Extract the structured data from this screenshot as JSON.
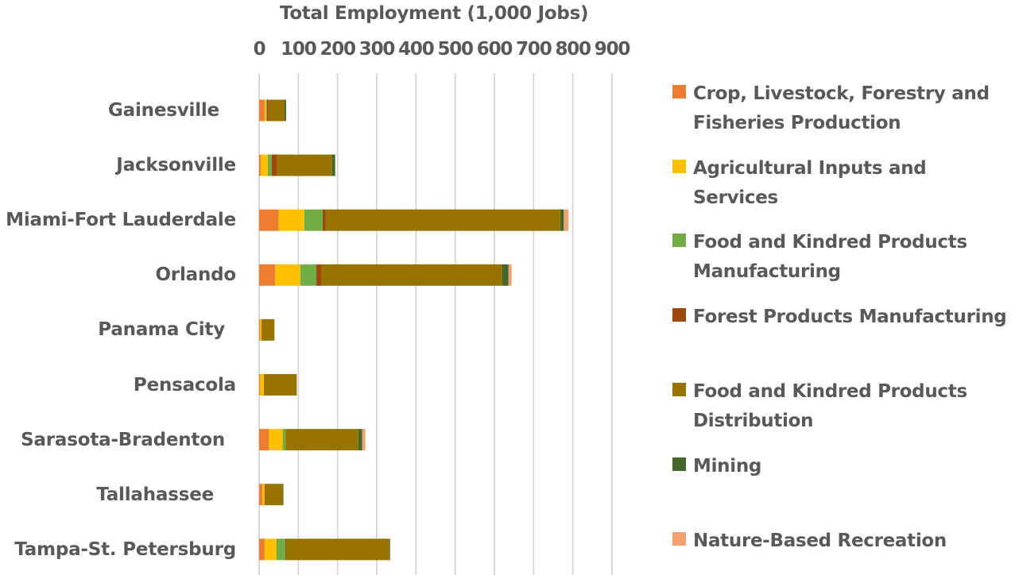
{
  "chart_data": {
    "type": "bar",
    "orientation": "horizontal",
    "stacked": true,
    "title": "Total Employment (1,000 Jobs)",
    "xlabel": "Total Employment (1,000 Jobs)",
    "ylabel": "",
    "xlim": [
      0,
      900
    ],
    "x_ticks": [
      "0",
      "100",
      "200",
      "300",
      "400",
      "500",
      "600",
      "700",
      "800",
      "900"
    ],
    "x_tick_values": [
      0,
      100,
      200,
      300,
      400,
      500,
      600,
      700,
      800,
      900
    ],
    "grid": true,
    "legend_position": "right",
    "categories": [
      "Gainesville",
      "Jacksonville",
      "Miami-Fort Lauderdale",
      "Orlando",
      "Panama City",
      "Pensacola",
      "Sarasota-Bradenton",
      "Tallahassee",
      "Tampa-St. Petersburg"
    ],
    "series": [
      {
        "name": "Crop, Livestock, Forestry and Fisheries Production",
        "legend_lines": [
          "Crop, Livestock, Forestry and",
          "Fisheries Production"
        ],
        "color": "#ED7D31",
        "values": [
          14,
          4,
          50,
          41,
          2,
          2,
          25,
          8,
          14
        ]
      },
      {
        "name": "Agricultural Inputs and Services",
        "legend_lines": [
          "Agricultural Inputs and Services"
        ],
        "color": "#FFC000",
        "values": [
          4,
          18,
          65,
          64,
          4,
          10,
          35,
          6,
          30
        ]
      },
      {
        "name": "Food and Kindred Products Manufacturing",
        "legend_lines": [
          "Food and Kindred Products",
          "Manufacturing"
        ],
        "color": "#70AD47",
        "values": [
          2,
          10,
          47,
          41,
          0,
          0,
          8,
          0,
          23
        ]
      },
      {
        "name": "Forest Products Manufacturing",
        "legend_lines": [
          "Forest Products Manufacturing"
        ],
        "color": "#9E480E",
        "values": [
          4,
          14,
          8,
          13,
          0,
          0,
          0,
          2,
          2
        ]
      },
      {
        "name": "Food and Kindred Products Distribution",
        "legend_lines": [
          "Food and Kindred Products",
          "Distribution"
        ],
        "color": "#997300",
        "values": [
          41,
          140,
          598,
          461,
          33,
          84,
          185,
          44,
          263
        ]
      },
      {
        "name": "Mining",
        "legend_lines": [
          "Mining"
        ],
        "color": "#43682B",
        "values": [
          4,
          8,
          9,
          16,
          0,
          0,
          10,
          2,
          2
        ]
      },
      {
        "name": "Nature-Based Recreation",
        "legend_lines": [
          "Nature-Based Recreation"
        ],
        "color": "#F4A071",
        "values": [
          0,
          0,
          12,
          8,
          0,
          0,
          8,
          0,
          0
        ]
      }
    ]
  }
}
